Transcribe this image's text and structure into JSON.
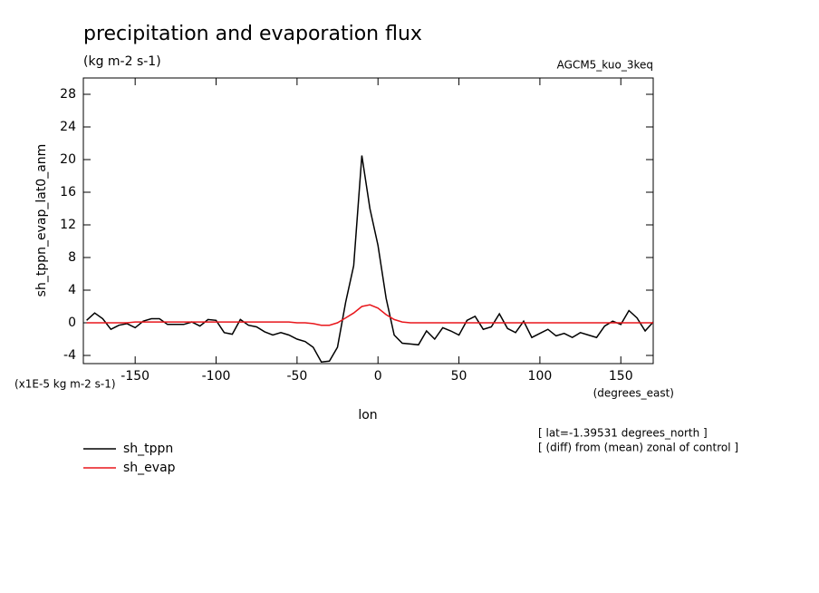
{
  "chart_data": {
    "type": "line",
    "title": "precipitation and evaporation flux",
    "subtitle": "(kg m-2 s-1)",
    "run_label": "AGCM5_kuo_3keq",
    "y_label": "sh_tppn_evap_lat0_anm",
    "y_unit": "(x1E-5 kg m-2 s-1)",
    "x_label": "lon",
    "x_unit": "(degrees_east)",
    "notes": [
      "[ lat=-1.39531 degrees_north ]",
      "[ (diff) from (mean) zonal of control ]"
    ],
    "x": [
      -180,
      -175,
      -170,
      -165,
      -160,
      -155,
      -150,
      -145,
      -140,
      -135,
      -130,
      -125,
      -120,
      -115,
      -110,
      -105,
      -100,
      -95,
      -90,
      -85,
      -80,
      -75,
      -70,
      -65,
      -60,
      -55,
      -50,
      -45,
      -40,
      -35,
      -30,
      -25,
      -20,
      -15,
      -10,
      -5,
      0,
      5,
      10,
      15,
      20,
      25,
      30,
      35,
      40,
      45,
      50,
      55,
      60,
      65,
      70,
      75,
      80,
      85,
      90,
      95,
      100,
      105,
      110,
      115,
      120,
      125,
      130,
      135,
      140,
      145,
      150,
      155,
      160,
      165,
      170
    ],
    "series": [
      {
        "name": "sh_tppn",
        "color": "#000000",
        "values": [
          0.3,
          1.2,
          0.5,
          -0.8,
          -0.3,
          -0.1,
          -0.6,
          0.2,
          0.5,
          0.5,
          -0.2,
          -0.2,
          -0.2,
          0.1,
          -0.4,
          0.4,
          0.3,
          -1.2,
          -1.4,
          0.4,
          -0.3,
          -0.5,
          -1.1,
          -1.5,
          -1.2,
          -1.5,
          -2.0,
          -2.3,
          -3.0,
          -4.8,
          -4.7,
          -3.0,
          2.5,
          7.0,
          20.5,
          14.0,
          9.5,
          3.0,
          -1.5,
          -2.5,
          -2.6,
          -2.7,
          -1.0,
          -2.0,
          -0.6,
          -1.0,
          -1.5,
          0.3,
          0.8,
          -0.8,
          -0.5,
          1.1,
          -0.7,
          -1.2,
          0.2,
          -1.8,
          -1.3,
          -0.8,
          -1.6,
          -1.3,
          -1.8,
          -1.2,
          -1.5,
          -1.8,
          -0.4,
          0.2,
          -0.2,
          1.5,
          0.6,
          -1.0,
          0.1
        ]
      },
      {
        "name": "sh_evap",
        "color": "#e8161b",
        "values": [
          0,
          0,
          0,
          0,
          0,
          0,
          0.1,
          0.1,
          0.1,
          0.1,
          0.1,
          0.1,
          0.1,
          0.1,
          0.1,
          0.1,
          0.1,
          0.1,
          0.1,
          0.1,
          0.1,
          0.1,
          0.1,
          0.1,
          0.1,
          0.1,
          0,
          0,
          -0.1,
          -0.3,
          -0.3,
          0,
          0.6,
          1.2,
          2.0,
          2.2,
          1.8,
          1.0,
          0.4,
          0.1,
          0,
          0,
          0,
          0,
          0,
          0,
          0,
          0,
          0,
          0,
          0,
          0,
          0,
          0,
          0,
          0,
          0,
          0,
          0,
          0,
          0,
          0,
          0,
          0,
          0,
          0,
          0,
          0,
          0,
          0,
          0
        ]
      }
    ],
    "xlim": [
      -182,
      170
    ],
    "xticks": [
      -150,
      -100,
      -50,
      0,
      50,
      100,
      150
    ],
    "ylim": [
      -5,
      30
    ],
    "yticks": [
      -4,
      0,
      4,
      8,
      12,
      16,
      20,
      24,
      28
    ]
  }
}
